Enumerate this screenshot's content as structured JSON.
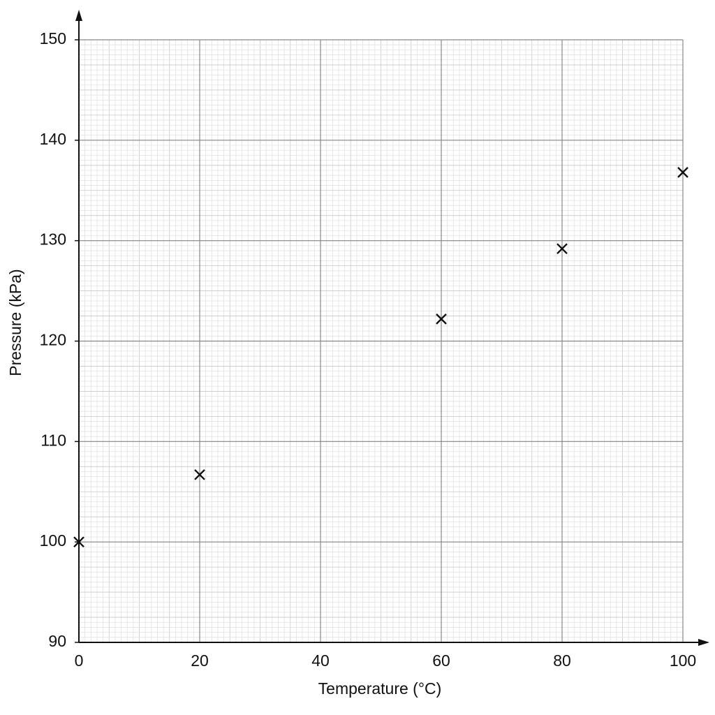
{
  "chart_data": {
    "type": "scatter",
    "x_label": "Temperature (°C)",
    "y_label": "Pressure (kPa)",
    "series": [
      {
        "name": "Pressure",
        "color": "#111111",
        "x": [
          0,
          20,
          60,
          80,
          100
        ],
        "values": [
          100,
          106.7,
          122.2,
          129.2,
          136.8
        ]
      }
    ],
    "xlim": [
      0,
      100
    ],
    "xticks": [
      0,
      20,
      40,
      60,
      80,
      100
    ],
    "ylim": [
      90,
      150
    ],
    "yticks": [
      90,
      100,
      110,
      120,
      130,
      140,
      150
    ],
    "grid": true
  }
}
